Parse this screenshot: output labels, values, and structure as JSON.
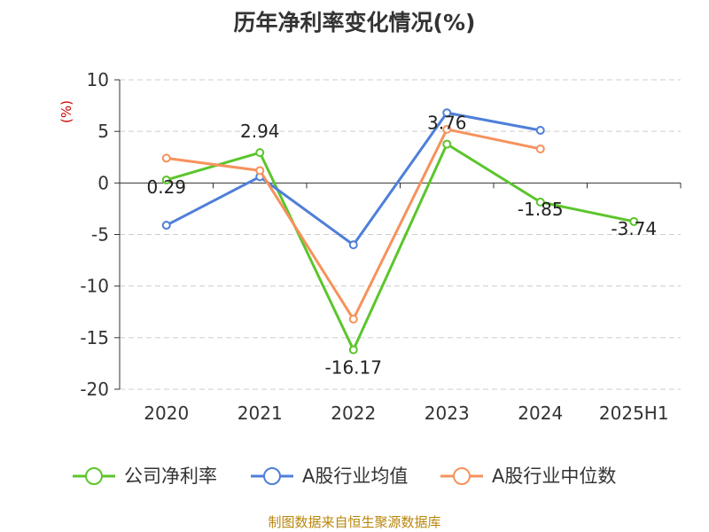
{
  "footer": "制图数据来自恒生聚源数据库",
  "chart_data": {
    "type": "line",
    "title": "历年净利率变化情况(%)",
    "ylabel": "(%)",
    "xlabel": "",
    "categories": [
      "2020",
      "2021",
      "2022",
      "2023",
      "2024",
      "2025H1"
    ],
    "ylim": [
      -20,
      10
    ],
    "yticks": [
      10,
      5,
      0,
      -5,
      -10,
      -15,
      -20
    ],
    "grid": true,
    "legend_position": "bottom",
    "series": [
      {
        "name": "公司净利率",
        "color": "#5cc52c",
        "values": [
          0.29,
          2.94,
          -16.17,
          3.76,
          -1.85,
          -3.74
        ],
        "show_labels": true
      },
      {
        "name": "A股行业均值",
        "color": "#4e7fd8",
        "values": [
          -4.1,
          0.6,
          -6.0,
          6.8,
          5.1,
          null
        ],
        "show_labels": false
      },
      {
        "name": "A股行业中位数",
        "color": "#f6925c",
        "values": [
          2.4,
          1.2,
          -13.2,
          5.2,
          3.3,
          null
        ],
        "show_labels": false
      }
    ],
    "data_labels": [
      "0.29",
      "2.94",
      "-16.17",
      "3.76",
      "-1.85",
      "-3.74"
    ]
  }
}
